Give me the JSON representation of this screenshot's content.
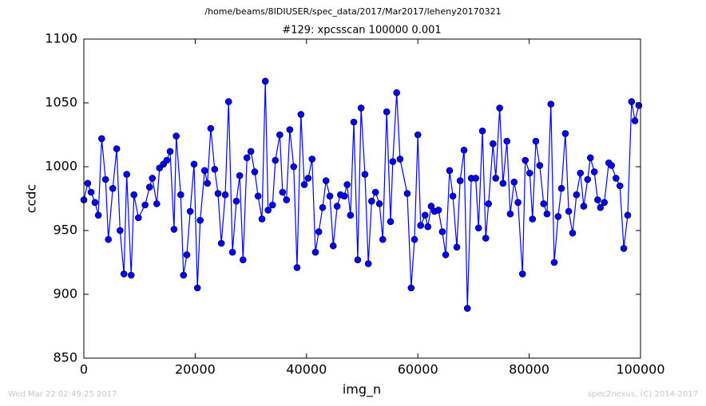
{
  "chart_data": {
    "type": "line",
    "title": "/home/beams/8IDIUSER/spec_data/2017/Mar2017/leheny20170321",
    "subtitle": "#129: xpcsscan 100000 0.001",
    "x_label": "img_n",
    "y_label": "ccdc",
    "footer_left": "Wed Mar 22 02:49:25 2017",
    "footer_right": "spec2nexus, (C) 2014-2017",
    "xlim": [
      0,
      100000
    ],
    "xticks": [
      0,
      20000,
      40000,
      60000,
      80000,
      100000
    ],
    "ylim": [
      850,
      1100
    ],
    "yticks": [
      850,
      900,
      950,
      1000,
      1050,
      1100
    ],
    "x": [
      0,
      700,
      1300,
      2000,
      2600,
      3200,
      3900,
      4400,
      5200,
      5900,
      6500,
      7200,
      7700,
      8500,
      9000,
      9800,
      11000,
      11800,
      12300,
      13100,
      13600,
      14300,
      14900,
      15500,
      16200,
      16600,
      17400,
      17900,
      18500,
      19100,
      19800,
      20400,
      20900,
      21700,
      22200,
      22800,
      23500,
      24100,
      24700,
      25400,
      26000,
      26700,
      27400,
      28000,
      28600,
      29300,
      30000,
      30700,
      31300,
      32000,
      32600,
      33100,
      33900,
      34400,
      35200,
      35700,
      36400,
      37000,
      37700,
      38300,
      39000,
      39600,
      40300,
      41000,
      41600,
      42200,
      42900,
      43500,
      44200,
      44800,
      45500,
      46100,
      46800,
      47300,
      47900,
      48500,
      49200,
      49800,
      50500,
      51100,
      51700,
      52400,
      53100,
      53700,
      54400,
      55100,
      55500,
      56200,
      56800,
      58100,
      58800,
      59400,
      60000,
      60500,
      61300,
      61800,
      62400,
      63000,
      63700,
      64400,
      65000,
      65700,
      66300,
      67000,
      67600,
      68300,
      68900,
      69600,
      70400,
      70900,
      71600,
      72200,
      72700,
      73500,
      74000,
      74700,
      75300,
      76000,
      76600,
      77300,
      78000,
      78800,
      79300,
      80100,
      80600,
      81200,
      81900,
      82600,
      83200,
      83900,
      84500,
      85200,
      85800,
      86500,
      87100,
      87800,
      88500,
      89200,
      89800,
      90500,
      91000,
      91700,
      92300,
      92800,
      93500,
      94300,
      94800,
      95600,
      96300,
      97000,
      97700,
      98400,
      99000,
      99700
    ],
    "series": [
      {
        "name": "ccdc",
        "color": "#0000ff",
        "values": [
          974,
          987,
          980,
          972,
          962,
          1022,
          990,
          943,
          983,
          1014,
          950,
          916,
          994,
          915,
          978,
          960,
          970,
          984,
          991,
          971,
          999,
          1002,
          1005,
          1012,
          951,
          1024,
          978,
          915,
          931,
          965,
          1002,
          905,
          958,
          997,
          987,
          1030,
          998,
          979,
          940,
          978,
          1051,
          933,
          973,
          993,
          927,
          1007,
          1012,
          996,
          977,
          959,
          1067,
          966,
          970,
          1005,
          1025,
          980,
          974,
          1029,
          1000,
          921,
          1041,
          986,
          991,
          1006,
          933,
          949,
          968,
          989,
          977,
          938,
          969,
          978,
          977,
          986,
          962,
          1035,
          927,
          1046,
          994,
          924,
          973,
          980,
          971,
          943,
          1043,
          957,
          1004,
          1058,
          1006,
          979,
          905,
          943,
          1025,
          954,
          962,
          953,
          969,
          965,
          966,
          949,
          931,
          997,
          977,
          937,
          989,
          1013,
          889,
          991,
          991,
          952,
          1028,
          944,
          971,
          1018,
          991,
          1046,
          987,
          1020,
          963,
          988,
          972,
          916,
          1005,
          995,
          959,
          1020,
          1001,
          971,
          963,
          1049,
          925,
          961,
          983,
          1026,
          965,
          948,
          978,
          995,
          969,
          990,
          1007,
          996,
          974,
          968,
          972,
          1003,
          1001,
          991,
          985,
          936,
          962,
          1051,
          1036,
          1048
        ]
      }
    ]
  }
}
